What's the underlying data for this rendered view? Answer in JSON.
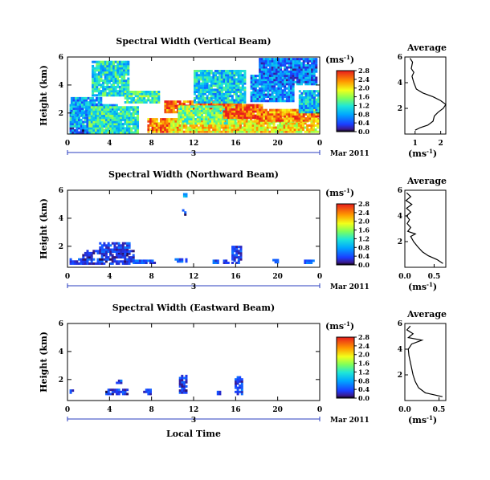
{
  "chart_data": [
    {
      "type": "heatmap",
      "title": "Spectral Width (Vertical Beam)",
      "ylabel": "Height (km)",
      "x_ticks": [
        "0",
        "4",
        "8",
        "12",
        "16",
        "20",
        "0"
      ],
      "xlim": [
        0,
        24
      ],
      "y_ticks": [
        "6",
        "4",
        "2"
      ],
      "ylim": [
        0.5,
        6
      ],
      "date_label": "Mar 2011",
      "day_label": "3",
      "colorbar": {
        "label": "(ms-1)",
        "ticks": [
          "2.8",
          "2.4",
          "2.0",
          "1.6",
          "1.2",
          "0.8",
          "0.4",
          "0.0"
        ],
        "range": [
          0,
          2.8
        ]
      },
      "blobs": [
        {
          "t0": 0.2,
          "t1": 4.6,
          "h0": 0.55,
          "h1": 1.0,
          "v": 0.45
        },
        {
          "t0": 0.2,
          "t1": 4.6,
          "h0": 1.0,
          "h1": 2.6,
          "v": 0.9
        },
        {
          "t0": 0.3,
          "t1": 3.2,
          "h0": 1.8,
          "h1": 3.0,
          "v": 0.8
        },
        {
          "t0": 2.3,
          "t1": 5.8,
          "h0": 3.2,
          "h1": 5.6,
          "v": 1.1
        },
        {
          "t0": 5.4,
          "t1": 8.6,
          "h0": 2.7,
          "h1": 3.5,
          "v": 1.3
        },
        {
          "t0": 2.0,
          "t1": 6.6,
          "h0": 0.55,
          "h1": 2.4,
          "v": 1.2
        },
        {
          "t0": 7.6,
          "t1": 10.5,
          "h0": 0.6,
          "h1": 1.5,
          "v": 2.4
        },
        {
          "t0": 9.2,
          "t1": 16.5,
          "h0": 2.0,
          "h1": 2.8,
          "v": 2.5
        },
        {
          "t0": 9.8,
          "t1": 24,
          "h0": 0.6,
          "h1": 1.6,
          "v": 2.0
        },
        {
          "t0": 10.5,
          "t1": 16,
          "h0": 1.2,
          "h1": 2.5,
          "v": 1.5
        },
        {
          "t0": 12,
          "t1": 16.8,
          "h0": 2.7,
          "h1": 5.0,
          "v": 1.0
        },
        {
          "t0": 14.8,
          "t1": 18.5,
          "h0": 1.6,
          "h1": 2.6,
          "v": 2.6
        },
        {
          "t0": 18,
          "t1": 23.8,
          "h0": 1.4,
          "h1": 2.2,
          "v": 2.4
        },
        {
          "t0": 17.4,
          "t1": 21.5,
          "h0": 2.8,
          "h1": 4.6,
          "v": 0.7
        },
        {
          "t0": 18.2,
          "t1": 23.6,
          "h0": 4.0,
          "h1": 5.8,
          "v": 0.6
        },
        {
          "t0": 22,
          "t1": 24,
          "h0": 2.0,
          "h1": 3.6,
          "v": 0.9
        }
      ]
    },
    {
      "type": "heatmap",
      "title": "Spectral Width (Northward Beam)",
      "ylabel": "Height (km)",
      "x_ticks": [
        "0",
        "4",
        "8",
        "12",
        "16",
        "20",
        "0"
      ],
      "xlim": [
        0,
        24
      ],
      "y_ticks": [
        "6",
        "4",
        "2"
      ],
      "ylim": [
        0.5,
        6
      ],
      "date_label": "Mar 2011",
      "day_label": "3",
      "colorbar": {
        "label": "(ms-1)",
        "ticks": [
          "2.8",
          "2.4",
          "2.0",
          "1.6",
          "1.2",
          "0.8",
          "0.4",
          "0.0"
        ],
        "range": [
          0,
          2.8
        ]
      },
      "blobs": [
        {
          "t0": 0.2,
          "t1": 1.4,
          "h0": 0.7,
          "h1": 1.1,
          "v": 0.4
        },
        {
          "t0": 1.4,
          "t1": 6.2,
          "h0": 0.7,
          "h1": 1.6,
          "v": 0.3
        },
        {
          "t0": 3.0,
          "t1": 5.8,
          "h0": 1.4,
          "h1": 2.2,
          "v": 0.35
        },
        {
          "t0": 6.2,
          "t1": 8.2,
          "h0": 0.75,
          "h1": 1.0,
          "v": 0.4
        },
        {
          "t0": 10.2,
          "t1": 11.2,
          "h0": 0.85,
          "h1": 1.0,
          "v": 0.4
        },
        {
          "t0": 10.9,
          "t1": 11.2,
          "h0": 4.2,
          "h1": 4.5,
          "v": 0.3
        },
        {
          "t0": 11.0,
          "t1": 11.2,
          "h0": 5.5,
          "h1": 5.7,
          "v": 0.8
        },
        {
          "t0": 13.8,
          "t1": 16.2,
          "h0": 0.75,
          "h1": 1.0,
          "v": 0.4
        },
        {
          "t0": 15.6,
          "t1": 16.4,
          "h0": 1.0,
          "h1": 2.0,
          "v": 0.35
        },
        {
          "t0": 19.5,
          "t1": 20.2,
          "h0": 0.8,
          "h1": 1.0,
          "v": 0.4
        },
        {
          "t0": 22.5,
          "t1": 23.4,
          "h0": 0.75,
          "h1": 0.95,
          "v": 0.45
        }
      ]
    },
    {
      "type": "heatmap",
      "title": "Spectral Width (Eastward Beam)",
      "ylabel": "Height (km)",
      "x_ticks": [
        "0",
        "4",
        "8",
        "12",
        "16",
        "20",
        "0"
      ],
      "xlim": [
        0,
        24
      ],
      "y_ticks": [
        "6",
        "4",
        "2"
      ],
      "ylim": [
        0.5,
        6
      ],
      "date_label": "Mar 2011",
      "day_label": "3",
      "xlabel": "Local Time",
      "colorbar": {
        "label": "(ms-1)",
        "ticks": [
          "2.8",
          "2.4",
          "2.0",
          "1.6",
          "1.2",
          "0.8",
          "0.4",
          "0.0"
        ],
        "range": [
          0,
          2.8
        ]
      },
      "blobs": [
        {
          "t0": 0.2,
          "t1": 0.5,
          "h0": 1.0,
          "h1": 1.2,
          "v": 0.3
        },
        {
          "t0": 3.6,
          "t1": 5.6,
          "h0": 0.9,
          "h1": 1.3,
          "v": 0.3
        },
        {
          "t0": 4.6,
          "t1": 5.0,
          "h0": 1.7,
          "h1": 1.9,
          "v": 0.4
        },
        {
          "t0": 7.2,
          "t1": 7.8,
          "h0": 0.9,
          "h1": 1.3,
          "v": 0.35
        },
        {
          "t0": 10.6,
          "t1": 11.3,
          "h0": 1.0,
          "h1": 2.3,
          "v": 0.3
        },
        {
          "t0": 14.2,
          "t1": 14.5,
          "h0": 0.9,
          "h1": 1.1,
          "v": 0.3
        },
        {
          "t0": 15.9,
          "t1": 16.6,
          "h0": 0.9,
          "h1": 2.1,
          "v": 0.35
        }
      ]
    }
  ],
  "profiles": [
    {
      "title": "Average",
      "x_ticks": [
        "1",
        "2"
      ],
      "xlim": [
        0.6,
        2.2
      ],
      "y_ticks": [
        "6",
        "4",
        "2"
      ],
      "ylim": [
        0,
        6
      ],
      "xlabel": "(ms-1)",
      "points": [
        [
          1.0,
          0.3
        ],
        [
          1.2,
          0.5
        ],
        [
          1.5,
          0.7
        ],
        [
          1.7,
          1.0
        ],
        [
          1.75,
          1.4
        ],
        [
          1.9,
          1.7
        ],
        [
          2.1,
          2.0
        ],
        [
          2.2,
          2.3
        ],
        [
          2.0,
          2.6
        ],
        [
          1.7,
          2.9
        ],
        [
          1.3,
          3.2
        ],
        [
          1.05,
          3.5
        ],
        [
          0.95,
          4.0
        ],
        [
          0.88,
          4.5
        ],
        [
          0.95,
          4.8
        ],
        [
          0.85,
          5.1
        ],
        [
          0.9,
          5.6
        ],
        [
          0.8,
          5.9
        ]
      ]
    },
    {
      "title": "Average",
      "x_ticks": [
        "0.0",
        "0.5"
      ],
      "xlim": [
        0,
        0.7
      ],
      "y_ticks": [
        "6",
        "4",
        "2"
      ],
      "ylim": [
        0,
        6
      ],
      "xlabel": "(ms-1)",
      "points": [
        [
          0.65,
          0.3
        ],
        [
          0.55,
          0.6
        ],
        [
          0.4,
          0.9
        ],
        [
          0.3,
          1.2
        ],
        [
          0.22,
          1.6
        ],
        [
          0.15,
          2.0
        ],
        [
          0.1,
          2.4
        ],
        [
          0.18,
          2.6
        ],
        [
          0.05,
          2.8
        ],
        [
          0.1,
          3.1
        ],
        [
          0.04,
          3.4
        ],
        [
          0.08,
          3.7
        ],
        [
          0.03,
          4.0
        ],
        [
          0.1,
          4.3
        ],
        [
          0.03,
          4.6
        ],
        [
          0.12,
          4.9
        ],
        [
          0.02,
          5.2
        ],
        [
          0.1,
          5.5
        ],
        [
          0.03,
          5.8
        ]
      ]
    },
    {
      "title": "Average",
      "x_ticks": [
        "0.0",
        "0.5"
      ],
      "xlim": [
        0,
        0.6
      ],
      "y_ticks": [
        "6",
        "4",
        "2"
      ],
      "ylim": [
        0,
        6
      ],
      "xlabel": "(ms-1)",
      "points": [
        [
          0.55,
          0.3
        ],
        [
          0.3,
          0.6
        ],
        [
          0.2,
          1.0
        ],
        [
          0.15,
          1.5
        ],
        [
          0.12,
          2.0
        ],
        [
          0.1,
          2.5
        ],
        [
          0.08,
          3.0
        ],
        [
          0.06,
          3.5
        ],
        [
          0.05,
          4.0
        ],
        [
          0.1,
          4.4
        ],
        [
          0.25,
          4.7
        ],
        [
          0.05,
          4.9
        ],
        [
          0.12,
          5.2
        ],
        [
          0.03,
          5.5
        ],
        [
          0.08,
          5.8
        ]
      ]
    }
  ]
}
